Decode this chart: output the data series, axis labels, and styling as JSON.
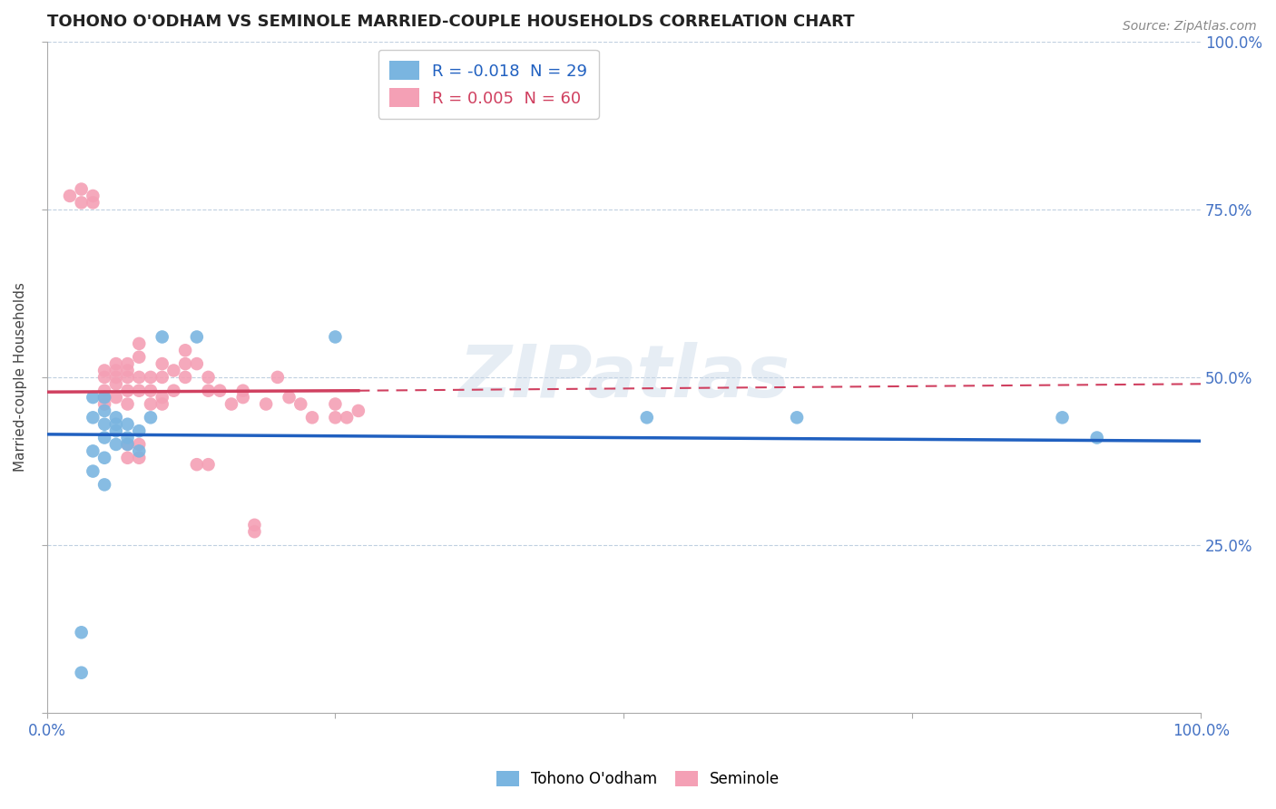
{
  "title": "TOHONO O'ODHAM VS SEMINOLE MARRIED-COUPLE HOUSEHOLDS CORRELATION CHART",
  "source_text": "Source: ZipAtlas.com",
  "ylabel": "Married-couple Households",
  "watermark": "ZIPatlas",
  "blue_R": -0.018,
  "blue_N": 29,
  "pink_R": 0.005,
  "pink_N": 60,
  "blue_color": "#7ab5e0",
  "pink_color": "#f4a0b5",
  "trendline_blue": "#2060c0",
  "trendline_pink": "#d04060",
  "grid_color": "#c0d0e0",
  "background_color": "#ffffff",
  "blue_x": [
    0.03,
    0.03,
    0.04,
    0.04,
    0.04,
    0.04,
    0.05,
    0.05,
    0.05,
    0.05,
    0.05,
    0.05,
    0.06,
    0.06,
    0.06,
    0.06,
    0.07,
    0.07,
    0.07,
    0.08,
    0.08,
    0.09,
    0.1,
    0.13,
    0.25,
    0.52,
    0.65,
    0.88,
    0.91
  ],
  "blue_y": [
    0.06,
    0.12,
    0.39,
    0.36,
    0.44,
    0.47,
    0.41,
    0.43,
    0.45,
    0.47,
    0.38,
    0.34,
    0.44,
    0.43,
    0.42,
    0.4,
    0.43,
    0.41,
    0.4,
    0.39,
    0.42,
    0.44,
    0.56,
    0.56,
    0.56,
    0.44,
    0.44,
    0.44,
    0.41
  ],
  "pink_x": [
    0.02,
    0.03,
    0.03,
    0.04,
    0.04,
    0.05,
    0.05,
    0.05,
    0.05,
    0.05,
    0.06,
    0.06,
    0.06,
    0.06,
    0.06,
    0.07,
    0.07,
    0.07,
    0.07,
    0.07,
    0.08,
    0.08,
    0.08,
    0.08,
    0.09,
    0.09,
    0.09,
    0.1,
    0.1,
    0.1,
    0.1,
    0.11,
    0.11,
    0.12,
    0.12,
    0.12,
    0.13,
    0.14,
    0.14,
    0.15,
    0.16,
    0.17,
    0.17,
    0.18,
    0.19,
    0.2,
    0.21,
    0.22,
    0.23,
    0.25,
    0.25,
    0.26,
    0.27,
    0.07,
    0.07,
    0.08,
    0.08,
    0.13,
    0.14,
    0.18
  ],
  "pink_y": [
    0.77,
    0.78,
    0.76,
    0.77,
    0.76,
    0.47,
    0.46,
    0.5,
    0.51,
    0.48,
    0.51,
    0.49,
    0.47,
    0.5,
    0.52,
    0.51,
    0.52,
    0.5,
    0.48,
    0.46,
    0.55,
    0.53,
    0.5,
    0.48,
    0.5,
    0.48,
    0.46,
    0.52,
    0.5,
    0.47,
    0.46,
    0.51,
    0.48,
    0.54,
    0.52,
    0.5,
    0.52,
    0.5,
    0.48,
    0.48,
    0.46,
    0.47,
    0.48,
    0.28,
    0.46,
    0.5,
    0.47,
    0.46,
    0.44,
    0.46,
    0.44,
    0.44,
    0.45,
    0.4,
    0.38,
    0.4,
    0.38,
    0.37,
    0.37,
    0.27
  ]
}
